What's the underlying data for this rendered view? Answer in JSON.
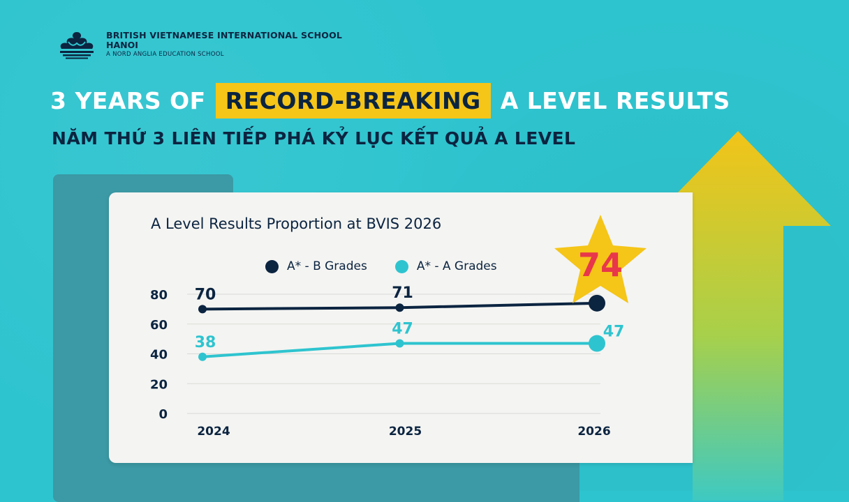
{
  "header": {
    "school_name": "BRITISH VIETNAMESE INTERNATIONAL SCHOOL",
    "city": "HANOI",
    "tagline": "A NORD ANGLIA EDUCATION SCHOOL"
  },
  "headline": {
    "part1": "3 YEARS OF",
    "highlight": "RECORD-BREAKING",
    "part2": "A LEVEL RESULTS"
  },
  "subheadline": "NĂM THỨ 3 LIÊN TIẾP PHÁ KỶ LỤC KẾT QUẢ A LEVEL",
  "colors": {
    "background": "#2ec4cf",
    "highlight": "#f5c518",
    "series_dark": "#0b2440",
    "series_light": "#2ec4cf",
    "star": "#f5c518",
    "star_text": "#e8374a"
  },
  "star_value": "74",
  "chart_data": {
    "type": "line",
    "title": "A Level Results Proportion at BVIS 2026",
    "categories": [
      "2024",
      "2025",
      "2026"
    ],
    "series": [
      {
        "name": "A* - B Grades",
        "values": [
          70,
          71,
          74
        ],
        "labels": [
          "70",
          "71",
          ""
        ]
      },
      {
        "name": "A* - A Grades",
        "values": [
          38,
          47,
          47
        ],
        "labels": [
          "38",
          "47",
          "47"
        ]
      }
    ],
    "y_ticks": [
      "0",
      "20",
      "40",
      "60",
      "80"
    ],
    "ylim": [
      0,
      80
    ],
    "legend_position": "top",
    "grid": true
  }
}
